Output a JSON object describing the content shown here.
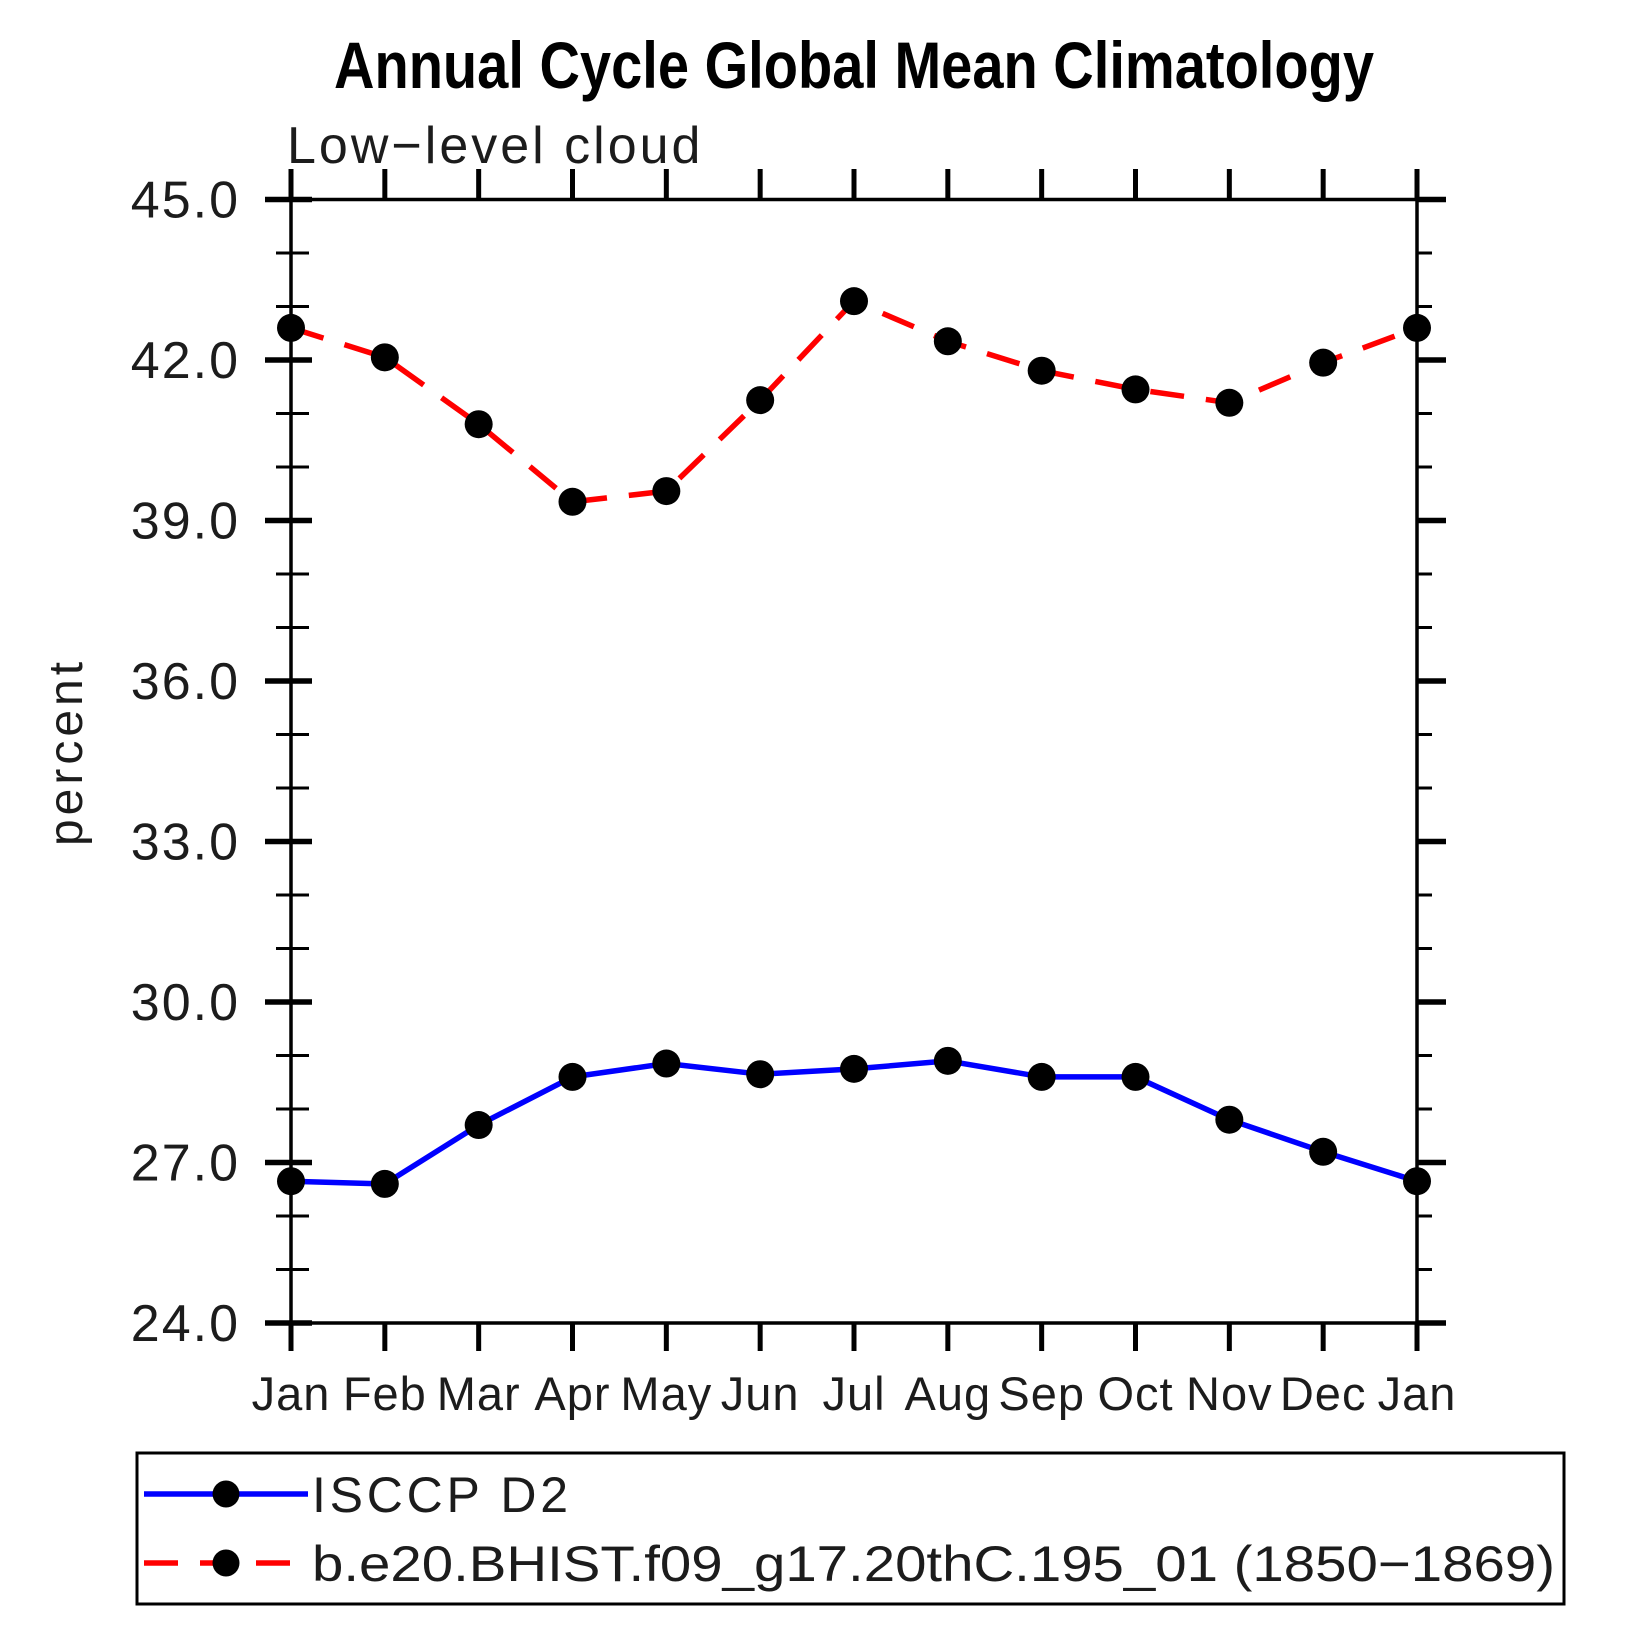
{
  "header": {
    "title": "Annual Cycle Global Mean Climatology",
    "subtitle": "Low−level cloud"
  },
  "axes": {
    "y_label": "percent",
    "y_tick_format_decimals": 1
  },
  "legend": {
    "entries": [
      {
        "label": "ISCCP D2",
        "color": "#0000ff",
        "style": "solid",
        "marker_color": "#000000"
      },
      {
        "label": "b.e20.BHIST.f09_g17.20thC.195_01 (1850−1869)",
        "color": "#ff0000",
        "style": "dashed",
        "marker_color": "#000000"
      }
    ]
  },
  "colors": {
    "frame": "#000000",
    "tick": "#000000",
    "marker": "#000000",
    "background": "#ffffff"
  },
  "chart_data": {
    "type": "line",
    "title": "Annual Cycle Global Mean Climatology",
    "subtitle": "Low-level cloud",
    "xlabel": "",
    "ylabel": "percent",
    "categories": [
      "Jan",
      "Feb",
      "Mar",
      "Apr",
      "May",
      "Jun",
      "Jul",
      "Aug",
      "Sep",
      "Oct",
      "Nov",
      "Dec",
      "Jan"
    ],
    "series": [
      {
        "name": "ISCCP D2",
        "color": "#0000ff",
        "line_style": "solid",
        "marker": "circle",
        "marker_color": "#000000",
        "values": [
          26.65,
          26.6,
          27.7,
          28.6,
          28.85,
          28.65,
          28.75,
          28.9,
          28.6,
          28.6,
          27.8,
          27.2,
          26.65
        ]
      },
      {
        "name": "b.e20.BHIST.f09_g17.20thC.195_01 (1850−1869)",
        "color": "#ff0000",
        "line_style": "dashed",
        "marker": "circle",
        "marker_color": "#000000",
        "values": [
          42.6,
          42.05,
          40.8,
          39.35,
          39.55,
          41.25,
          43.1,
          42.35,
          41.8,
          41.45,
          41.2,
          41.95,
          42.6
        ]
      }
    ],
    "ylim": [
      24.0,
      45.0
    ],
    "y_major_step": 3.0,
    "y_minor_step": 1.0,
    "grid": false,
    "legend_position": "bottom"
  }
}
